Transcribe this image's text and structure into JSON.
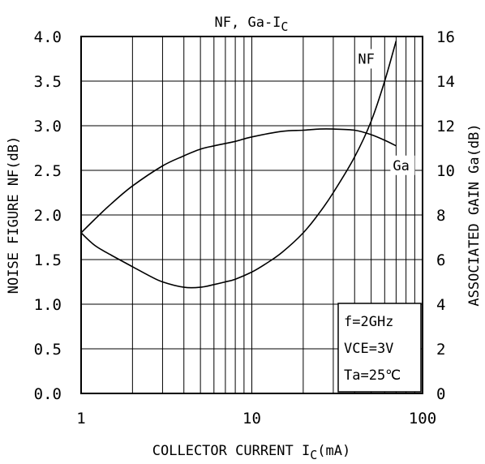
{
  "chart_data": {
    "type": "line",
    "title": "NF, Ga-I",
    "title_subscript": "C",
    "xlabel": "COLLECTOR CURRENT I",
    "xlabel_subscript": "C",
    "xlabel_unit": "(mA)",
    "ylabel": "NOISE FIGURE NF(dB)",
    "y2label": "ASSOCIATED GAIN Ga(dB)",
    "xscale": "log",
    "xlim": [
      1,
      100
    ],
    "ylim": [
      0,
      4
    ],
    "y2lim": [
      0,
      16
    ],
    "grid": true,
    "x_ticks": [
      {
        "value": 1,
        "label": "1"
      },
      {
        "value": 10,
        "label": "10"
      },
      {
        "value": 100,
        "label": "100"
      }
    ],
    "y_ticks": [
      "0.0",
      "0.5",
      "1.0",
      "1.5",
      "2.0",
      "2.5",
      "3.0",
      "3.5",
      "4.0"
    ],
    "y2_ticks": [
      "0",
      "2",
      "4",
      "6",
      "8",
      "10",
      "12",
      "14",
      "16"
    ],
    "series": [
      {
        "name": "NF",
        "axis": "left",
        "color": "#000000",
        "x": [
          1,
          1.2,
          1.5,
          2,
          2.5,
          3,
          4,
          5,
          6,
          7,
          8,
          10,
          12,
          15,
          20,
          25,
          30,
          40,
          50,
          60,
          70
        ],
        "y": [
          1.8,
          1.66,
          1.55,
          1.42,
          1.32,
          1.25,
          1.19,
          1.19,
          1.22,
          1.25,
          1.28,
          1.36,
          1.45,
          1.58,
          1.8,
          2.03,
          2.25,
          2.65,
          3.05,
          3.5,
          3.95
        ]
      },
      {
        "name": "Ga",
        "axis": "right",
        "color": "#000000",
        "x": [
          1,
          1.2,
          1.5,
          2,
          3,
          4,
          5,
          6,
          8,
          10,
          15,
          20,
          25,
          30,
          40,
          50,
          60,
          70
        ],
        "y": [
          7.2,
          7.8,
          8.5,
          9.3,
          10.2,
          10.65,
          10.95,
          11.1,
          11.3,
          11.5,
          11.75,
          11.8,
          11.85,
          11.85,
          11.8,
          11.6,
          11.35,
          11.1
        ]
      }
    ],
    "curve_labels": [
      {
        "series": "NF",
        "text": "NF"
      },
      {
        "series": "Ga",
        "text": "Ga"
      }
    ],
    "conditions": [
      "f=2GHz",
      "VCE=3V",
      "Ta=25℃"
    ]
  }
}
